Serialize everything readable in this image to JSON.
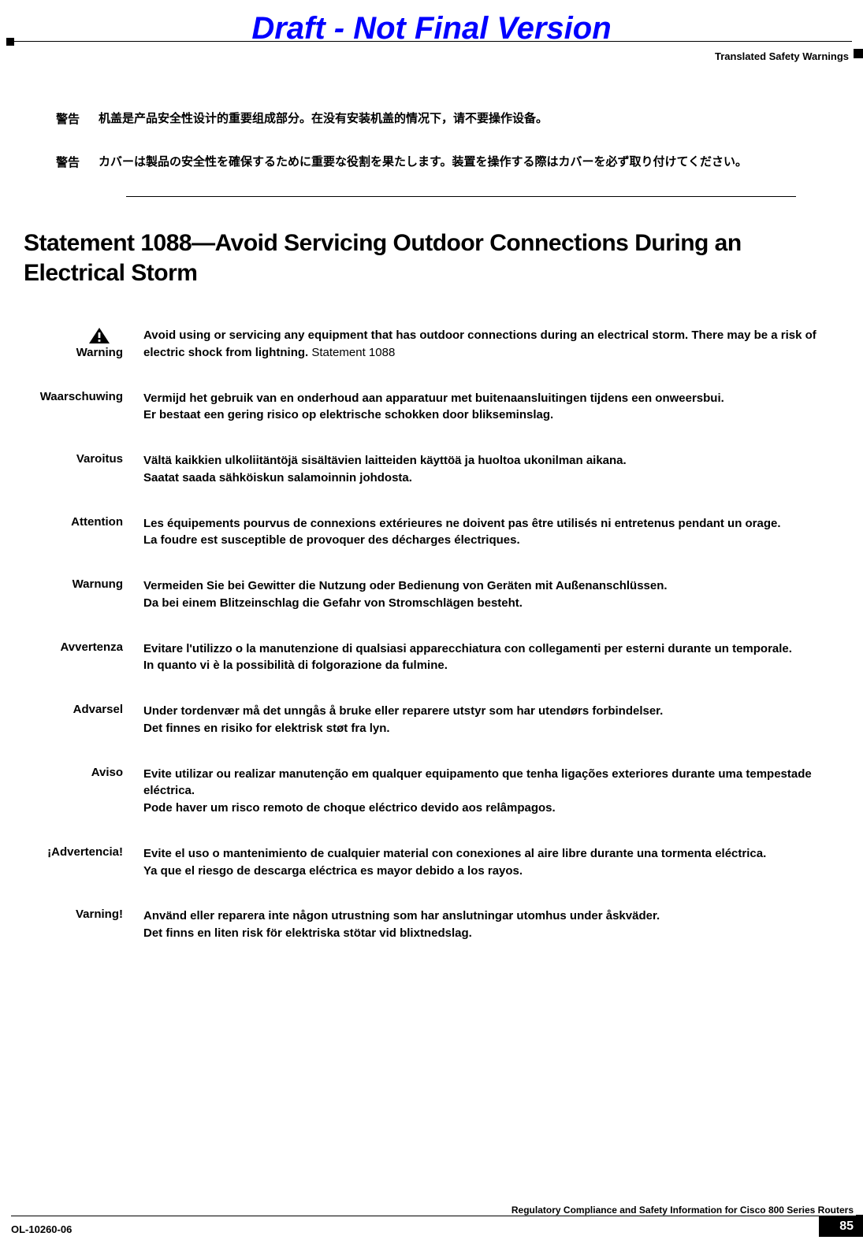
{
  "watermark": "Draft - Not Final Version",
  "header_right": "Translated Safety Warnings",
  "cjk_warnings": [
    {
      "label": "警告",
      "text": "机盖是产品安全性设计的重要组成部分。在没有安装机盖的情况下，请不要操作设备。"
    },
    {
      "label": "警告",
      "text": "カバーは製品の安全性を確保するために重要な役割を果たします。装置を操作する際はカバーを必ず取り付けてください。"
    }
  ],
  "section_heading": "Statement 1088—Avoid Servicing Outdoor Connections During an Electrical Storm",
  "primary_warning": {
    "label": "Warning",
    "text": "Avoid using or servicing any equipment that has outdoor connections during an electrical storm. There may be a risk of electric shock from lightning.",
    "statement_ref": "Statement 1088"
  },
  "translated_warnings": [
    {
      "label": "Waarschuwing",
      "lines": [
        "Vermijd het gebruik van en onderhoud aan apparatuur met buitenaansluitingen tijdens een onweersbui.",
        "Er bestaat een gering risico op elektrische schokken door blikseminslag."
      ]
    },
    {
      "label": "Varoitus",
      "lines": [
        "Vältä kaikkien ulkoliitäntöjä sisältävien laitteiden käyttöä ja huoltoa ukonilman aikana.",
        "Saatat saada sähköiskun salamoinnin johdosta."
      ]
    },
    {
      "label": "Attention",
      "lines": [
        "Les équipements pourvus de connexions extérieures ne doivent pas être utilisés ni entretenus pendant un orage.",
        "La foudre est susceptible de provoquer des décharges électriques."
      ]
    },
    {
      "label": "Warnung",
      "lines": [
        "Vermeiden Sie bei Gewitter die Nutzung oder Bedienung von Geräten mit Außenanschlüssen.",
        "Da bei einem Blitzeinschlag die Gefahr von Stromschlägen besteht."
      ]
    },
    {
      "label": "Avvertenza",
      "lines": [
        "Evitare l'utilizzo o la manutenzione di qualsiasi apparecchiatura con collegamenti per esterni durante un temporale.",
        "In quanto vi è la possibilità di folgorazione da fulmine."
      ]
    },
    {
      "label": "Advarsel",
      "lines": [
        "Under tordenvær må det unngås å bruke eller reparere utstyr som har utendørs forbindelser.",
        "Det finnes en risiko for elektrisk støt fra lyn."
      ]
    },
    {
      "label": "Aviso",
      "lines": [
        "Evite utilizar ou realizar manutenção em qualquer equipamento que tenha ligações exteriores durante uma tempestade eléctrica.",
        "Pode haver um risco remoto de choque eléctrico devido aos relâmpagos."
      ]
    },
    {
      "label": "¡Advertencia!",
      "lines": [
        "Evite el uso o mantenimiento de cualquier material con conexiones al aire libre durante una tormenta eléctrica.",
        "Ya que el riesgo de descarga eléctrica es mayor debido a los rayos."
      ]
    },
    {
      "label": "Varning!",
      "lines": [
        "Använd eller reparera inte någon utrustning som har anslutningar utomhus under åskväder.",
        "Det finns en liten risk för elektriska stötar vid blixtnedslag."
      ]
    }
  ],
  "footer": {
    "doc_title": "Regulatory Compliance and Safety Information for Cisco 800 Series Routers",
    "doc_id": "OL-10260-06",
    "page_number": "85"
  },
  "colors": {
    "watermark": "#0000ff",
    "text": "#000000",
    "background": "#ffffff"
  }
}
